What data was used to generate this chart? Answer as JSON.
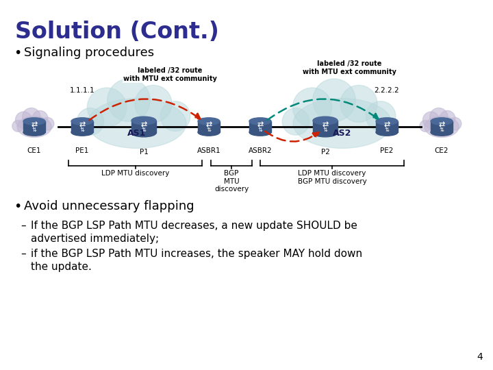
{
  "title": "Solution (Cont.)",
  "bullet1": "Signaling procedures",
  "bullet2": "Avoid unnecessary flapping",
  "sub1": "If the BGP LSP Path MTU decreases, a new update SHOULD be\nadvertised immediately;",
  "sub2": "if the BGP LSP Path MTU increases, the speaker MAY hold down\nthe update.",
  "label_left": "labeled /32 route\nwith MTU ext community",
  "label_right": "labeled /32 route\nwith MTU ext community",
  "node_1111": "1.1.1.1",
  "node_2222": "2.2.2.2",
  "as1_label": "AS1",
  "as2_label": "AS2",
  "ldp_left": "LDP MTU discovery",
  "bgp_mtu": "BGP\nMTU\ndiscovery",
  "ldp_bgp_right": "LDP MTU discovery\nBGP MTU discovery",
  "node_labels": [
    "CE1",
    "PE1",
    "P1",
    "ASBR1",
    "ASBR2",
    "P2",
    "PE2",
    "CE2"
  ],
  "page_num": "4",
  "bg_color": "#ffffff",
  "title_color": "#2d2d8f",
  "bullet_color": "#000000",
  "cloud_as_color": "#b8d8dc",
  "cloud_ce_color": "#c0b8d4",
  "node_color": "#3a5580",
  "node_top_color": "#4a6898",
  "arrow_red": "#cc2200",
  "arrow_teal": "#008878",
  "line_color": "#000000",
  "label_color": "#000000"
}
